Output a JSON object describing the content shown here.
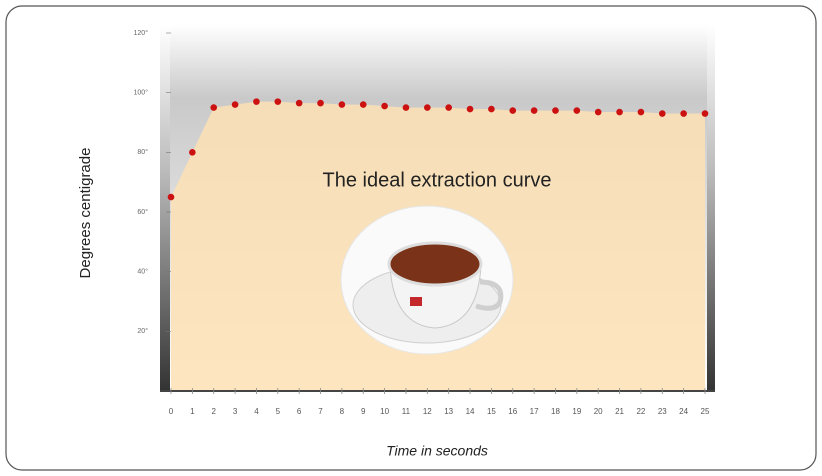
{
  "chart_data": {
    "type": "area",
    "title": "The ideal extraction curve",
    "y_label": "Degrees centigrade",
    "x_label": "Time in seconds",
    "x": [
      0,
      1,
      2,
      3,
      4,
      5,
      6,
      7,
      8,
      9,
      10,
      11,
      12,
      13,
      14,
      15,
      16,
      17,
      18,
      19,
      20,
      21,
      22,
      23,
      24,
      25
    ],
    "values": [
      65,
      80,
      95,
      96,
      97,
      97,
      96.5,
      96.5,
      96,
      96,
      95.5,
      95,
      95,
      95,
      94.5,
      94.5,
      94,
      94,
      94,
      94,
      93.5,
      93.5,
      93.5,
      93,
      93,
      93
    ],
    "color": "#cc1111",
    "area_color": "#fde2b4",
    "xlim": [
      0,
      25
    ],
    "xticks": [
      0,
      1,
      2,
      3,
      4,
      5,
      6,
      7,
      8,
      9,
      10,
      11,
      12,
      13,
      14,
      15,
      16,
      17,
      18,
      19,
      20,
      21,
      22,
      23,
      24,
      25
    ],
    "ylim": [
      0,
      120
    ],
    "yticks": [
      {
        "value": 20,
        "label": "20°"
      },
      {
        "value": 40,
        "label": "40°"
      },
      {
        "value": 60,
        "label": "60°"
      },
      {
        "value": 80,
        "label": "80°"
      },
      {
        "value": 100,
        "label": "100°"
      },
      {
        "value": 120,
        "label": "120°"
      }
    ]
  }
}
